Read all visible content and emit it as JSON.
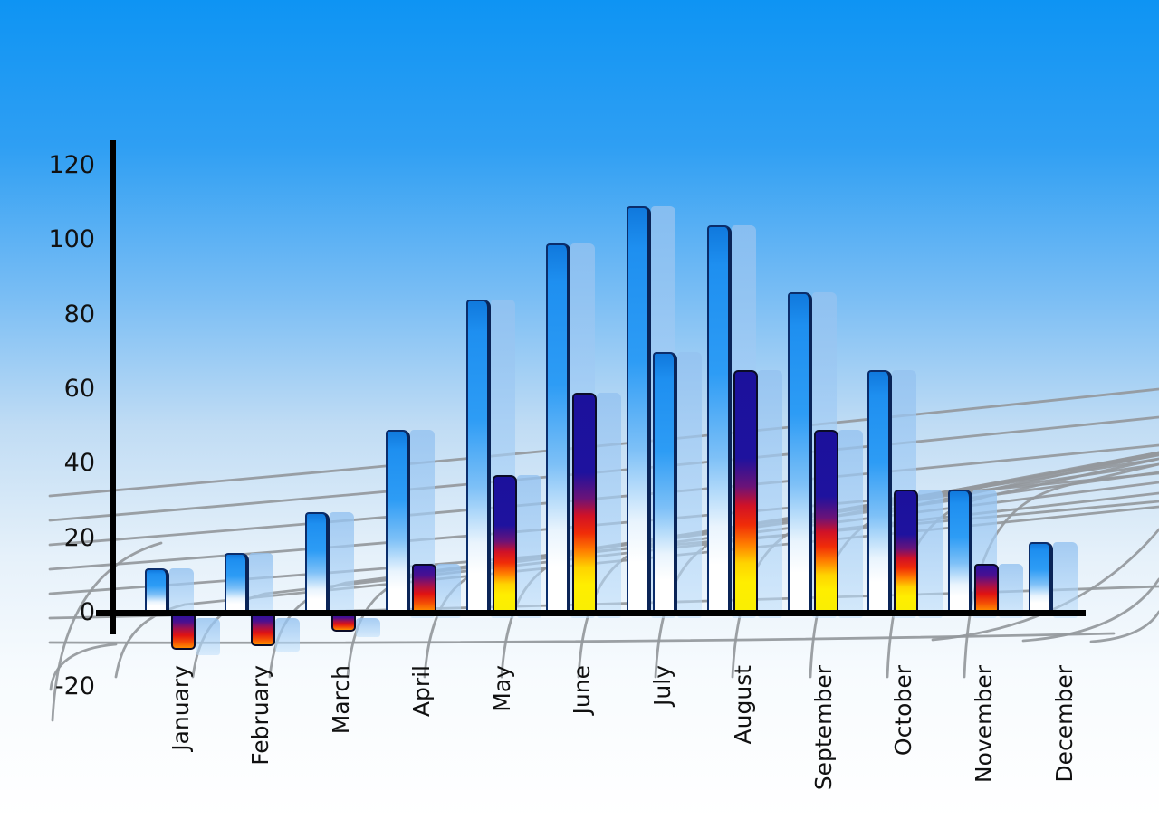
{
  "chart_data": {
    "type": "bar",
    "title": "",
    "xlabel": "",
    "ylabel": "",
    "categories": [
      "January",
      "February",
      "March",
      "April",
      "May",
      "June",
      "July",
      "August",
      "September",
      "October",
      "November",
      "December"
    ],
    "series": [
      {
        "name": "series-blue",
        "values": [
          12,
          16,
          27,
          49,
          84,
          99,
          109,
          104,
          86,
          65,
          33,
          19
        ],
        "style": "blue-gradient"
      },
      {
        "name": "series-rainbow",
        "values": [
          -10,
          -9,
          -5,
          13,
          37,
          59,
          70,
          65,
          49,
          33,
          13,
          null
        ],
        "style": "rainbow-gradient",
        "styles": [
          "rainbow",
          "rainbow",
          "rainbow",
          "rainbow",
          "rainbow",
          "rainbow",
          "blue",
          "rainbow",
          "rainbow",
          "rainbow",
          "rainbow",
          null
        ]
      }
    ],
    "y_ticks": [
      120,
      100,
      80,
      60,
      40,
      20,
      0,
      -20
    ],
    "y_tick_labels": [
      "120",
      "100",
      "80",
      "60",
      "40",
      "20",
      "0",
      "-20"
    ],
    "ylim": [
      -20,
      120
    ],
    "grid": "perspective-curved-mesh",
    "legend": "none",
    "bar_depth_shadow": true
  },
  "colors": {
    "sky_top": "#0e94f3",
    "sky_bottom": "#ffffff",
    "bar_blue": "#2196f3",
    "bar_blue_edge": "#0b2d6b",
    "rainbow_navy": "#1c129e",
    "rainbow_red": "#e01212",
    "rainbow_orange": "#ff8c00",
    "rainbow_yellow": "#ffee00",
    "shadow_bar": "#9ec8f2",
    "grid": "#94989c",
    "axis": "#000000",
    "label": "#111111"
  }
}
